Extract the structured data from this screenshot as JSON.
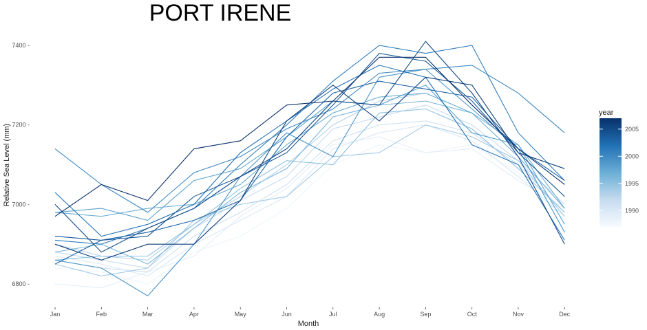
{
  "chart_data": {
    "type": "line",
    "title": "PORT IRENE",
    "xlabel": "Month",
    "ylabel": "Relative Sea Level (mm)",
    "categories": [
      "Jan",
      "Feb",
      "Mar",
      "Apr",
      "May",
      "Jun",
      "Jul",
      "Aug",
      "Sep",
      "Oct",
      "Nov",
      "Dec"
    ],
    "y_ticks": [
      6800,
      7000,
      7200,
      7400
    ],
    "y_tick_labels": [
      "6800 -",
      "7000 -",
      "7200 -",
      "7400 -"
    ],
    "ylim": [
      6760,
      7420
    ],
    "grid": false,
    "legend": {
      "title": "year",
      "placement": "right",
      "type": "colorbar",
      "range": [
        1987,
        2007
      ],
      "ticks": [
        1990,
        1995,
        2000,
        2005
      ],
      "tick_labels": [
        "1990",
        "1995",
        "2000",
        "2005"
      ],
      "color_low": "#f7fbff",
      "color_high": "#08306b"
    },
    "series": [
      {
        "year": 1988,
        "values": [
          6840,
          6830,
          6800,
          6880,
          6920,
          6990,
          7100,
          7150,
          7130,
          7150,
          7080,
          6960
        ]
      },
      {
        "year": 1989,
        "values": [
          6800,
          6790,
          6830,
          6870,
          6970,
          7040,
          7150,
          7170,
          7130,
          7140,
          7060,
          6990
        ]
      },
      {
        "year": 1990,
        "values": [
          6870,
          6850,
          6820,
          6900,
          6960,
          7020,
          7140,
          7180,
          7200,
          7160,
          7070,
          6970
        ]
      },
      {
        "year": 1991,
        "values": [
          6860,
          6840,
          6830,
          6920,
          6980,
          7050,
          7160,
          7200,
          7210,
          7180,
          7100,
          6980
        ]
      },
      {
        "year": 1992,
        "values": [
          6880,
          6860,
          6840,
          6940,
          7010,
          7070,
          7190,
          7220,
          7250,
          7200,
          7110,
          7000
        ]
      },
      {
        "year": 1993,
        "values": [
          6900,
          6870,
          6860,
          6950,
          7020,
          7100,
          7200,
          7260,
          7280,
          7230,
          7120,
          6990
        ]
      },
      {
        "year": 1994,
        "values": [
          6850,
          6820,
          6840,
          6960,
          7000,
          7020,
          7120,
          7130,
          7200,
          7170,
          7110,
          6970
        ]
      },
      {
        "year": 1995,
        "values": [
          6860,
          6870,
          6870,
          6950,
          7040,
          7110,
          7100,
          7230,
          7240,
          7190,
          7090,
          6980
        ]
      },
      {
        "year": 1996,
        "values": [
          6880,
          6900,
          6850,
          6940,
          7030,
          7090,
          7220,
          7250,
          7260,
          7230,
          7120,
          6990
        ]
      },
      {
        "year": 1997,
        "values": [
          6980,
          6970,
          6990,
          7000,
          7050,
          7150,
          7230,
          7270,
          7280,
          7230,
          7150,
          6990
        ]
      },
      {
        "year": 1998,
        "values": [
          6980,
          6990,
          6960,
          7060,
          7090,
          7170,
          7260,
          7250,
          7300,
          7180,
          7150,
          6950
        ]
      },
      {
        "year": 1999,
        "values": [
          6860,
          6840,
          6770,
          6900,
          7070,
          7180,
          7120,
          7320,
          7340,
          7240,
          7140,
          6930
        ]
      },
      {
        "year": 2000,
        "values": [
          7140,
          7050,
          6980,
          7080,
          7120,
          7190,
          7240,
          7330,
          7340,
          7350,
          7280,
          7180
        ]
      },
      {
        "year": 2001,
        "values": [
          6910,
          6900,
          6940,
          6990,
          7100,
          7200,
          7310,
          7400,
          7380,
          7400,
          7180,
          7060
        ]
      },
      {
        "year": 2002,
        "values": [
          7030,
          6920,
          6950,
          7000,
          7130,
          7210,
          7290,
          7350,
          7320,
          7150,
          7100,
          6910
        ]
      },
      {
        "year": 2003,
        "values": [
          6850,
          6910,
          6930,
          6960,
          7010,
          7170,
          7280,
          7310,
          7290,
          7270,
          7140,
          7060
        ]
      },
      {
        "year": 2004,
        "values": [
          6920,
          6910,
          6920,
          7020,
          7070,
          7130,
          7250,
          7380,
          7360,
          7260,
          7130,
          7020
        ]
      },
      {
        "year": 2005,
        "values": [
          7000,
          6880,
          6940,
          6990,
          7070,
          7140,
          7260,
          7250,
          7410,
          7280,
          7120,
          6900
        ]
      },
      {
        "year": 2006,
        "values": [
          6900,
          6860,
          6900,
          6900,
          7010,
          7210,
          7300,
          7210,
          7320,
          7300,
          7130,
          7090
        ]
      },
      {
        "year": 2007,
        "values": [
          6970,
          7050,
          7010,
          7140,
          7160,
          7250,
          7260,
          7370,
          7370,
          7250,
          7140,
          7050
        ]
      }
    ]
  }
}
